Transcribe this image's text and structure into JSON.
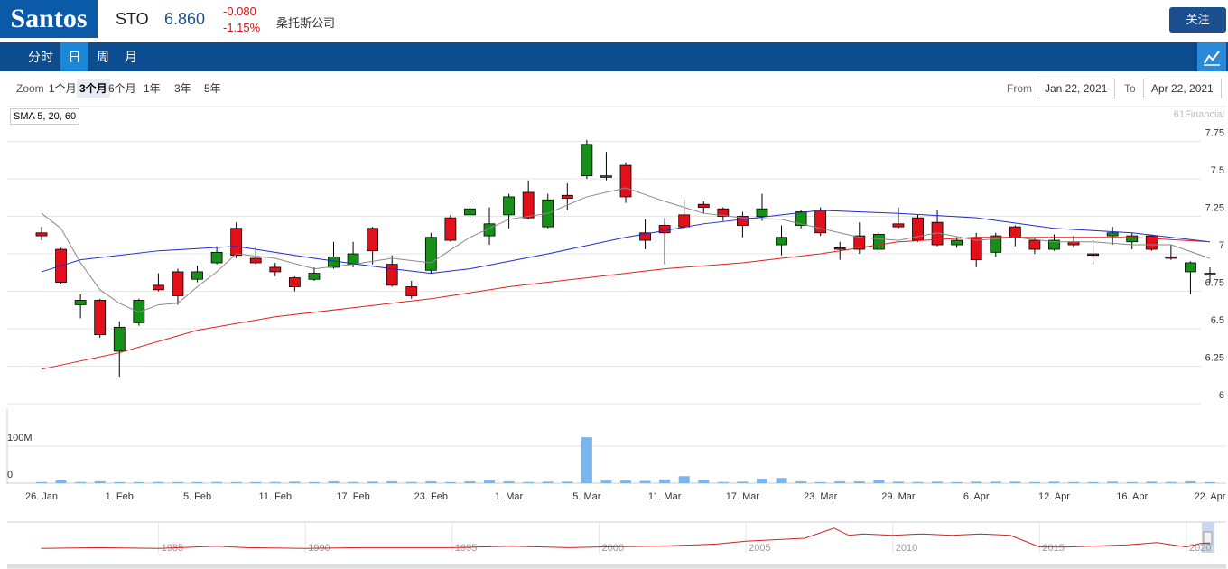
{
  "header": {
    "logo": "Santos",
    "symbol": "STO",
    "price": "6.860",
    "change": "-0.080",
    "change_pct": "-1.15%",
    "company": "桑托斯公司",
    "follow_button": "关注"
  },
  "tabs": [
    "分时",
    "日",
    "周",
    "月"
  ],
  "active_tab": "日",
  "zoom": {
    "label": "Zoom",
    "options": [
      "1个月",
      "3个月",
      "6个月",
      "1年",
      "3年",
      "5年"
    ],
    "active": "3个月"
  },
  "range": {
    "from_label": "From",
    "from": "Jan 22, 2021",
    "to_label": "To",
    "to": "Apr 22, 2021"
  },
  "chart_data": {
    "type": "candlestick",
    "indicator_label": "SMA 5, 20, 60",
    "credit": "61Financial",
    "categories": [
      "26. Jan",
      null,
      null,
      null,
      "1. Feb",
      null,
      null,
      null,
      "5. Feb",
      null,
      null,
      null,
      "11. Feb",
      null,
      null,
      null,
      "17. Feb",
      null,
      null,
      null,
      "23. Feb",
      null,
      null,
      null,
      "1. Mar",
      null,
      null,
      null,
      "5. Mar",
      null,
      null,
      null,
      "11. Mar",
      null,
      null,
      null,
      "17. Mar",
      null,
      null,
      null,
      "23. Mar",
      null,
      null,
      null,
      "29. Mar",
      null,
      null,
      null,
      "6. Apr",
      null,
      null,
      null,
      "12. Apr",
      null,
      null,
      null,
      "16. Apr",
      null,
      null,
      null,
      "22. Apr"
    ],
    "open": [
      7.14,
      7.03,
      6.66,
      6.69,
      6.35,
      6.54,
      6.79,
      6.88,
      6.83,
      6.94,
      7.17,
      6.97,
      6.91,
      6.84,
      6.83,
      6.91,
      6.93,
      7.17,
      6.93,
      6.78,
      6.89,
      7.24,
      7.26,
      7.12,
      7.26,
      7.41,
      7.18,
      7.39,
      7.52,
      7.52,
      7.59,
      7.14,
      7.19,
      7.26,
      7.33,
      7.3,
      7.25,
      7.25,
      7.06,
      7.19,
      7.29,
      7.04,
      7.12,
      7.03,
      7.2,
      7.24,
      7.21,
      7.06,
      7.11,
      7.01,
      7.18,
      7.09,
      7.03,
      7.08,
      7.0,
      7.12,
      7.08,
      7.12,
      6.98,
      6.88,
      6.87
    ],
    "high": [
      7.18,
      7.04,
      6.73,
      6.7,
      6.55,
      6.7,
      6.87,
      6.9,
      6.92,
      7.05,
      7.21,
      7.05,
      6.94,
      6.85,
      6.91,
      7.08,
      7.08,
      7.18,
      6.99,
      6.82,
      7.14,
      7.26,
      7.35,
      7.31,
      7.4,
      7.49,
      7.4,
      7.47,
      7.76,
      7.68,
      7.61,
      7.23,
      7.24,
      7.36,
      7.35,
      7.31,
      7.28,
      7.4,
      7.19,
      7.29,
      7.31,
      7.08,
      7.21,
      7.15,
      7.31,
      7.26,
      7.29,
      7.11,
      7.14,
      7.14,
      7.19,
      7.11,
      7.13,
      7.12,
      7.09,
      7.18,
      7.14,
      7.13,
      7.06,
      6.95,
      6.91
    ],
    "low": [
      7.09,
      6.8,
      6.57,
      6.44,
      6.18,
      6.52,
      6.75,
      6.66,
      6.81,
      6.93,
      6.97,
      6.93,
      6.85,
      6.75,
      6.82,
      6.9,
      6.91,
      6.93,
      6.78,
      6.7,
      6.87,
      7.08,
      7.24,
      7.06,
      7.17,
      7.23,
      7.17,
      7.29,
      7.5,
      7.49,
      7.34,
      7.03,
      6.93,
      7.17,
      7.27,
      7.22,
      7.11,
      7.22,
      6.99,
      7.17,
      7.12,
      6.96,
      7.0,
      7.02,
      7.17,
      7.08,
      7.05,
      7.04,
      6.91,
      6.98,
      7.05,
      7.0,
      7.02,
      7.04,
      6.93,
      7.06,
      7.03,
      7.02,
      6.96,
      6.73,
      6.81
    ],
    "close": [
      7.12,
      6.81,
      6.69,
      6.46,
      6.51,
      6.69,
      6.76,
      6.72,
      6.88,
      7.01,
      6.99,
      6.94,
      6.88,
      6.78,
      6.87,
      6.98,
      7.0,
      7.02,
      6.79,
      6.72,
      7.11,
      7.09,
      7.3,
      7.2,
      7.38,
      7.24,
      7.36,
      7.37,
      7.73,
      7.51,
      7.38,
      7.09,
      7.14,
      7.18,
      7.31,
      7.25,
      7.19,
      7.3,
      7.11,
      7.28,
      7.14,
      7.03,
      7.03,
      7.13,
      7.18,
      7.09,
      7.06,
      7.09,
      6.96,
      7.12,
      7.11,
      7.03,
      7.09,
      7.06,
      6.99,
      7.14,
      7.12,
      7.03,
      6.97,
      6.94,
      6.86
    ],
    "up_color": "#17901a",
    "down_color": "#e3101c",
    "ylim": [
      6,
      7.97
    ],
    "yticks": [
      6,
      6.25,
      6.5,
      6.75,
      7,
      7.25,
      7.5,
      7.75
    ],
    "grid": true,
    "series": [
      {
        "color": "#8a8a8a",
        "x": [
          0,
          1,
          2,
          3,
          4,
          5,
          6,
          7,
          8,
          9,
          10,
          12,
          14,
          16,
          18,
          20,
          22,
          24,
          26,
          28,
          30,
          32,
          34,
          36,
          38,
          40,
          42,
          44,
          46,
          48,
          50,
          52,
          54,
          56,
          58,
          60
        ],
        "values": [
          7.27,
          7.17,
          6.94,
          6.76,
          6.67,
          6.61,
          6.66,
          6.67,
          6.78,
          6.88,
          7.0,
          6.97,
          6.9,
          6.93,
          6.97,
          6.94,
          7.11,
          7.23,
          7.27,
          7.38,
          7.44,
          7.35,
          7.27,
          7.24,
          7.23,
          7.17,
          7.11,
          7.09,
          7.14,
          7.09,
          7.11,
          7.08,
          7.08,
          7.06,
          7.06,
          6.97
        ]
      },
      {
        "color": "#1f2ccf",
        "x": [
          0,
          2,
          6,
          10,
          14,
          18,
          20,
          22,
          26,
          30,
          34,
          38,
          40,
          44,
          48,
          52,
          56,
          60
        ],
        "values": [
          6.88,
          6.96,
          7.02,
          7.05,
          6.97,
          6.9,
          6.87,
          6.9,
          7.0,
          7.11,
          7.2,
          7.26,
          7.29,
          7.27,
          7.24,
          7.17,
          7.14,
          7.08
        ]
      },
      {
        "color": "#e02020",
        "x": [
          0,
          4,
          8,
          12,
          16,
          20,
          24,
          28,
          32,
          36,
          40,
          44,
          48,
          52,
          56,
          60
        ],
        "values": [
          6.23,
          6.34,
          6.49,
          6.58,
          6.64,
          6.7,
          6.78,
          6.84,
          6.9,
          6.94,
          7.0,
          7.08,
          7.11,
          7.11,
          7.11,
          7.08
        ]
      }
    ],
    "volume": {
      "type": "bar",
      "color": "#7cb5ec",
      "ylim": [
        0,
        195
      ],
      "yticks": [
        0,
        {
          "value": 100,
          "label": "100M"
        }
      ],
      "values": [
        3,
        8,
        3,
        5,
        3,
        3,
        3,
        3,
        3,
        3,
        3,
        3,
        3,
        4,
        3,
        5,
        3,
        4,
        5,
        3,
        5,
        3,
        5,
        7,
        5,
        3,
        4,
        4,
        124,
        7,
        7,
        6,
        10,
        19,
        9,
        3,
        4,
        12,
        14,
        5,
        3,
        5,
        5,
        9,
        4,
        3,
        4,
        3,
        4,
        4,
        4,
        3,
        4,
        3,
        3,
        4,
        3,
        4,
        3,
        5,
        3
      ]
    },
    "navigator": {
      "type": "line",
      "color": "#d42020",
      "xlim": [
        1980.4,
        2020.8
      ],
      "xticks": [
        1985,
        1990,
        1995,
        2000,
        2005,
        2010,
        2015,
        2020
      ],
      "ylim": [
        0,
        20
      ],
      "x": [
        1981,
        1983,
        1985,
        1987,
        1988,
        1990,
        1992,
        1995,
        1997,
        1999,
        2000,
        2002,
        2004,
        2005,
        2006,
        2007,
        2008,
        2008.5,
        2009,
        2010,
        2011,
        2012,
        2013,
        2014,
        2015,
        2016,
        2018,
        2019,
        2020,
        2020.5,
        2020.8
      ],
      "values": [
        3,
        3.5,
        3,
        4.5,
        3.5,
        3,
        3.5,
        3.5,
        4.5,
        3.5,
        4,
        4.5,
        6,
        8,
        9,
        10,
        17,
        12,
        13,
        12,
        13,
        12,
        13,
        12,
        4,
        4,
        5.5,
        7,
        4,
        6.5,
        6.8
      ]
    }
  }
}
